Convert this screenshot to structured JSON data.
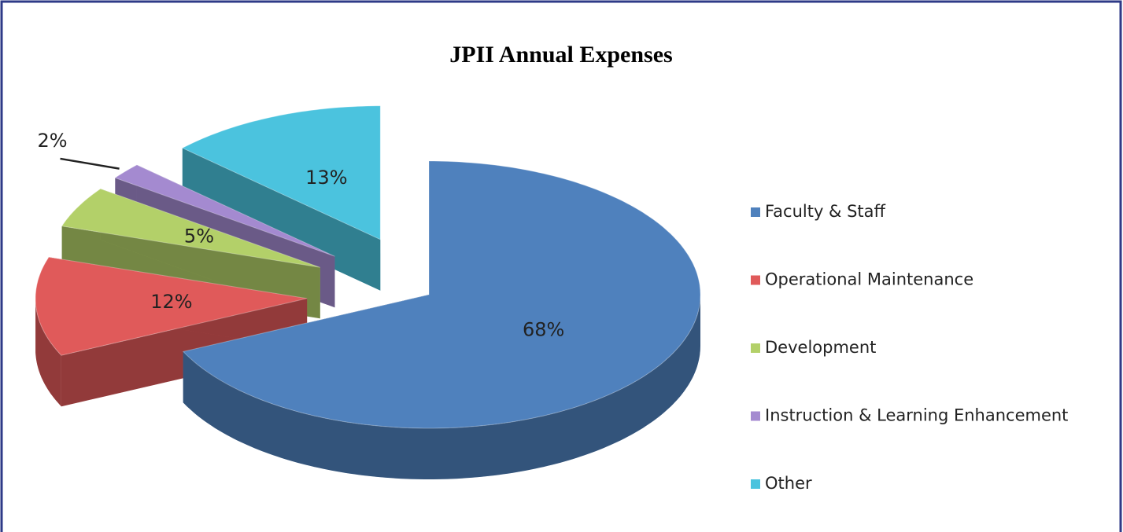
{
  "chart_data": {
    "type": "pie",
    "title": "JPII Annual Expenses",
    "categories": [
      "Faculty & Staff",
      "Operational Maintenance",
      "Development",
      "Instruction & Learning Enhancement",
      "Other"
    ],
    "values": [
      68,
      12,
      5,
      2,
      13
    ],
    "value_labels": [
      "68%",
      "12%",
      "5%",
      "2%",
      "13%"
    ],
    "colors": [
      "#4f81bd",
      "#e05a5a",
      "#b3d069",
      "#a48ad0",
      "#4bc3de"
    ],
    "legend": "right"
  }
}
